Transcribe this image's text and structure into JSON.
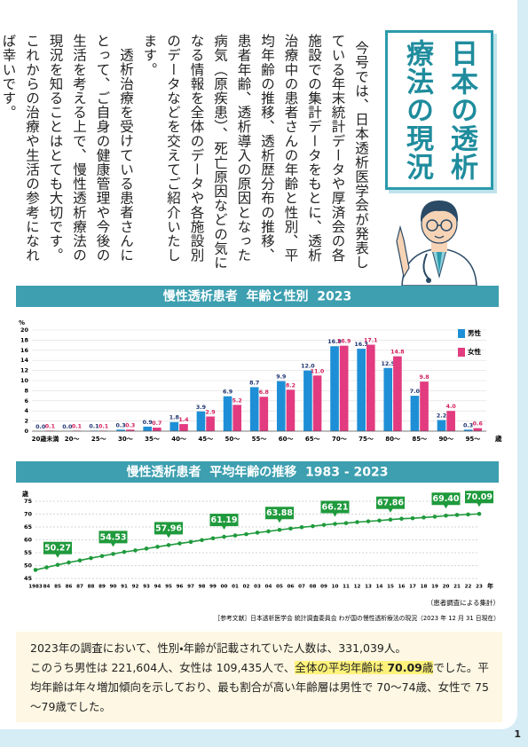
{
  "header": {
    "title": "日本の透析療法の現況"
  },
  "intro": {
    "paragraphs": [
      "今号では、日本透析医学会が発表している年末統計データや厚済会の各施設での集計データをもとに、透析治療中の患者さんの年齢と性別、平均年齢の推移、透析歴分布の推移、患者年齢、透析導入の原因となった病気（原疾患）、死亡原因などの気になる情報を全体のデータや各施設別のデータなどを交えてご紹介いたします。",
      "透析治療を受けている患者さんにとって、ご自身の健康管理や今後の生活を考える上で、慢性透析療法の現況を知ることはとても大切です。これからの治療や生活の参考になれば幸いです。"
    ]
  },
  "chart_data": [
    {
      "type": "bar",
      "title": "慢性透析患者  年齢と性別  2023",
      "categories": [
        "20歳未満",
        "20～",
        "25～",
        "30～",
        "35～",
        "40～",
        "45～",
        "50～",
        "55～",
        "60～",
        "65～",
        "70～",
        "75～",
        "80～",
        "85～",
        "90～",
        "95～"
      ],
      "x_unit": "歳",
      "y_unit": "%",
      "ylim": [
        0,
        20
      ],
      "yticks": [
        0,
        2,
        4,
        6,
        8,
        10,
        12,
        14,
        16,
        18,
        20
      ],
      "grid": true,
      "legend": "upper right",
      "series": [
        {
          "name": "男性",
          "color": "#1e8fd6",
          "label_color": "#1d3470",
          "values": [
            0.0,
            0.0,
            0.1,
            0.3,
            0.9,
            1.8,
            3.9,
            6.9,
            8.7,
            9.9,
            12.0,
            16.8,
            16.3,
            12.5,
            7.0,
            2.2,
            0.3
          ],
          "value_labels": [
            "0.0",
            "0.0",
            "0.1",
            "0.3",
            "0.9",
            "1.8",
            "3.9",
            "6.9",
            "8.7",
            "9.9",
            "12.0",
            "16.8",
            "16.3",
            "12.5",
            "7.0",
            "2.2",
            "0.3"
          ]
        },
        {
          "name": "女性",
          "color": "#e23b80",
          "label_color": "#d4215f",
          "values": [
            0.1,
            0.1,
            0.1,
            0.3,
            0.7,
            1.4,
            2.9,
            5.2,
            6.8,
            8.2,
            11.0,
            16.9,
            17.1,
            14.8,
            9.8,
            4.0,
            0.6
          ],
          "value_labels": [
            "0.1",
            "0.1",
            "0.1",
            "0.3",
            "0.7",
            "1.4",
            "2.9",
            "5.2",
            "6.8",
            "8.2",
            "11.0",
            "16.9",
            "17.1",
            "14.8",
            "9.8",
            "4.0",
            "0.6"
          ]
        }
      ]
    },
    {
      "type": "line",
      "title": "慢性透析患者  平均年齢の推移  1983 - 2023",
      "categories": [
        "1983",
        "84",
        "85",
        "86",
        "87",
        "88",
        "89",
        "90",
        "91",
        "92",
        "93",
        "94",
        "95",
        "96",
        "97",
        "98",
        "99",
        "00",
        "01",
        "02",
        "03",
        "04",
        "05",
        "06",
        "07",
        "08",
        "09",
        "10",
        "11",
        "12",
        "13",
        "14",
        "15",
        "16",
        "17",
        "18",
        "19",
        "20",
        "21",
        "22",
        "23"
      ],
      "x_unit": "年",
      "y_unit": "歳",
      "ylim": [
        45,
        75
      ],
      "yticks": [
        45,
        50,
        55,
        60,
        65,
        70,
        75
      ],
      "grid": true,
      "color": "#1f9a3c",
      "values": [
        48.3,
        49.3,
        50.27,
        51.2,
        52.0,
        52.9,
        53.7,
        54.53,
        55.3,
        55.9,
        56.6,
        57.3,
        57.96,
        58.6,
        59.2,
        59.9,
        60.6,
        61.19,
        61.7,
        62.2,
        62.8,
        63.3,
        63.88,
        64.4,
        64.9,
        65.3,
        65.8,
        66.21,
        66.5,
        66.9,
        67.2,
        67.5,
        67.86,
        68.2,
        68.4,
        68.7,
        69.0,
        69.4,
        69.67,
        69.87,
        70.09
      ],
      "value_labels": [
        null,
        null,
        "50.27",
        null,
        null,
        null,
        null,
        "54.53",
        null,
        null,
        null,
        null,
        "57.96",
        null,
        null,
        null,
        null,
        "61.19",
        null,
        null,
        null,
        null,
        "63.88",
        null,
        null,
        null,
        null,
        "66.21",
        null,
        null,
        null,
        null,
        "67.86",
        null,
        null,
        null,
        null,
        "69.40",
        null,
        null,
        "70.09"
      ]
    }
  ],
  "note": "（患者調査による集計）",
  "reference": "［参考文献］日本透析医学会 統計調査委員会 わが国の慢性透析療法の現況（2023 年 12 月 31 日現在）",
  "summary": {
    "line1": "2023年の調査において、性別・年齢が記載されていた人数は、331,039人。",
    "before": "このうち男性は 221,604人、女性は 109,435人で、",
    "highlight": "全体の平均年齢は ",
    "highlight_value": "70.09",
    "highlight_unit": "歳",
    "after": "でした。平均年齢は年々増加傾向を示しており、最も割合が高い年齢層は男性で 70～74歳、女性で 75～79歳でした。"
  },
  "page_number": "1"
}
